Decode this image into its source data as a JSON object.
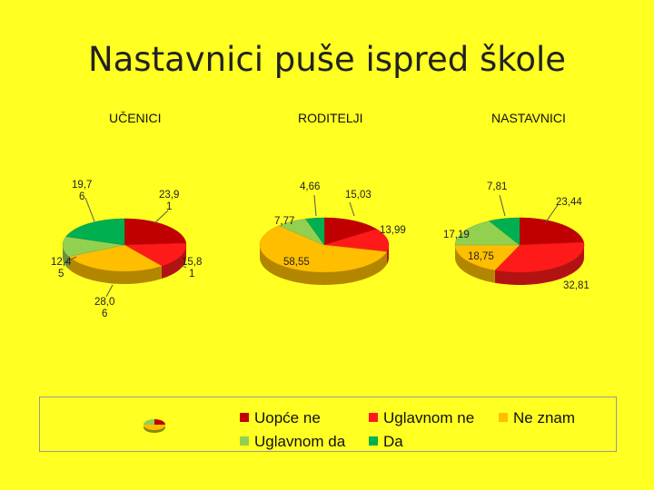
{
  "title": "Nastavnici puše ispred škole",
  "chart_data": {
    "type": "pie",
    "categories": [
      "Uopće ne",
      "Uglavnom ne",
      "Ne znam",
      "Uglavnom da",
      "Da"
    ],
    "colors": {
      "Uopće ne": "#c00000",
      "Uglavnom ne": "#ff1a1a",
      "Ne znam": "#ffbf00",
      "Uglavnom da": "#92d050",
      "Da": "#00b050"
    },
    "legend_position": "bottom",
    "pies": [
      {
        "name": "UČENICI",
        "values": [
          23.91,
          15.81,
          28.06,
          12.45,
          19.76
        ],
        "labels": [
          "23,9\n1",
          "15,8\n1",
          "28,0\n6",
          "12,4\n5",
          "19,7\n6"
        ]
      },
      {
        "name": "RODITELJI",
        "values": [
          15.03,
          13.99,
          58.55,
          7.77,
          4.66
        ],
        "labels": [
          "15,03",
          "13,99",
          "58,55",
          "7,77",
          "4,66"
        ]
      },
      {
        "name": "NASTAVNICI",
        "values": [
          23.44,
          32.81,
          18.75,
          17.19,
          7.81
        ],
        "labels": [
          "23,44",
          "32,81",
          "18,75",
          "17,19",
          "7,81"
        ]
      }
    ]
  }
}
